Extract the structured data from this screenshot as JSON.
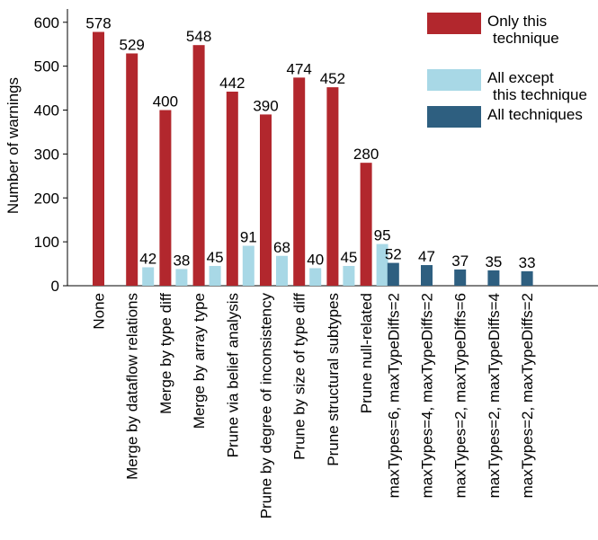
{
  "chart_data": {
    "type": "bar",
    "title": "",
    "xlabel": "",
    "ylabel": "Number of warnings",
    "ylim": [
      0,
      620
    ],
    "yticks": [
      0,
      100,
      200,
      300,
      400,
      500,
      600
    ],
    "grid": false,
    "legend_position": "top-right",
    "categories": [
      "None",
      "Merge by dataflow relations",
      "Merge by type diff",
      "Merge by array type",
      "Prune via belief analysis",
      "Prune by degree of inconsistency",
      "Prune by size of type diff",
      "Prune structural subtypes",
      "Prune null-related",
      "maxTypes=6, maxTypeDiffs=2",
      "maxTypes=4, maxTypeDiffs=2",
      "maxTypes=2, maxTypeDiffs=6",
      "maxTypes=2, maxTypeDiffs=4",
      "maxTypes=2, maxTypeDiffs=2"
    ],
    "series": [
      {
        "name": "Only this technique",
        "color": "#b2272d",
        "values": [
          578,
          529,
          400,
          548,
          442,
          390,
          474,
          452,
          280,
          null,
          null,
          null,
          null,
          null
        ]
      },
      {
        "name": "All except this technique",
        "color": "#a8d8e6",
        "values": [
          null,
          42,
          38,
          45,
          91,
          68,
          40,
          45,
          95,
          null,
          null,
          null,
          null,
          null
        ]
      },
      {
        "name": "All techniques",
        "color": "#2e5f80",
        "values": [
          null,
          null,
          null,
          null,
          null,
          null,
          null,
          null,
          null,
          52,
          47,
          37,
          35,
          33
        ]
      }
    ]
  }
}
